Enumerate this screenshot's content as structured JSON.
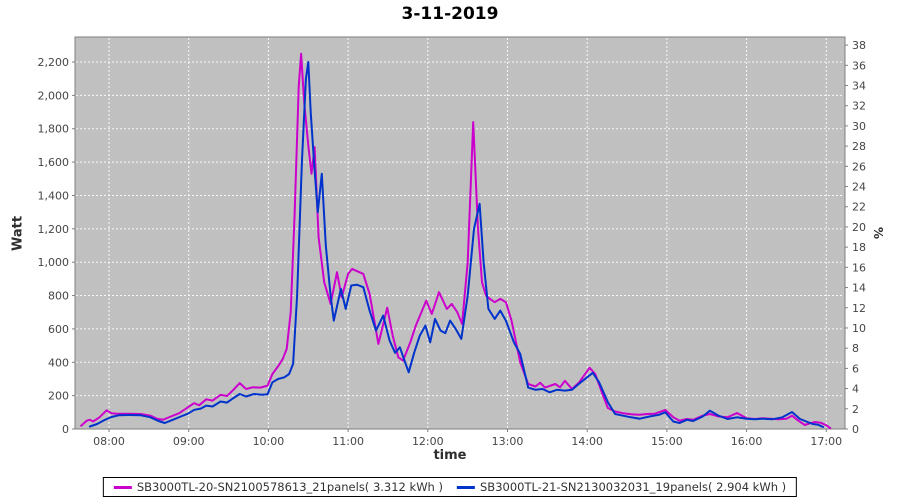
{
  "title": "3-11-2019",
  "chart_data": {
    "type": "line",
    "title": "3-11-2019",
    "plot_background": "#c0c0c0",
    "grid": true,
    "grid_color": "#ffffff",
    "legend_position": "bottom",
    "x_axis": {
      "label": "time",
      "min": 7.573,
      "max": 17.235,
      "ticks": [
        8,
        9,
        10,
        11,
        12,
        13,
        14,
        15,
        16,
        17
      ],
      "tick_labels": [
        "08:00",
        "09:00",
        "10:00",
        "11:00",
        "12:00",
        "13:00",
        "14:00",
        "15:00",
        "16:00",
        "17:00"
      ]
    },
    "y_axis_left": {
      "label": "Watt",
      "min": 0,
      "max": 2350,
      "ticks": [
        0,
        200,
        400,
        600,
        800,
        1000,
        1200,
        1400,
        1600,
        1800,
        2000,
        2200
      ]
    },
    "y_axis_right": {
      "label": "%",
      "min": 0,
      "max": 38.8,
      "ticks": [
        0,
        2,
        4,
        6,
        8,
        10,
        12,
        14,
        16,
        18,
        20,
        22,
        24,
        26,
        28,
        30,
        32,
        34,
        36,
        38
      ]
    },
    "series": [
      {
        "name": "SB3000TL-20-SN2100578613_21panels( 3.312 kWh )",
        "energy_kwh": 3.312,
        "color": "#cc00cc",
        "points": [
          [
            7.65,
            20
          ],
          [
            7.72,
            50
          ],
          [
            7.76,
            55
          ],
          [
            7.8,
            45
          ],
          [
            7.88,
            70
          ],
          [
            7.97,
            112
          ],
          [
            8.03,
            95
          ],
          [
            8.1,
            92
          ],
          [
            8.25,
            92
          ],
          [
            8.4,
            90
          ],
          [
            8.52,
            80
          ],
          [
            8.6,
            62
          ],
          [
            8.68,
            56
          ],
          [
            8.76,
            72
          ],
          [
            8.88,
            95
          ],
          [
            8.99,
            130
          ],
          [
            9.07,
            155
          ],
          [
            9.13,
            142
          ],
          [
            9.22,
            178
          ],
          [
            9.3,
            170
          ],
          [
            9.4,
            205
          ],
          [
            9.48,
            198
          ],
          [
            9.56,
            235
          ],
          [
            9.64,
            275
          ],
          [
            9.72,
            240
          ],
          [
            9.8,
            250
          ],
          [
            9.9,
            248
          ],
          [
            9.99,
            260
          ],
          [
            10.05,
            330
          ],
          [
            10.12,
            375
          ],
          [
            10.18,
            420
          ],
          [
            10.23,
            480
          ],
          [
            10.28,
            700
          ],
          [
            10.33,
            1300
          ],
          [
            10.38,
            2050
          ],
          [
            10.41,
            2250
          ],
          [
            10.45,
            1950
          ],
          [
            10.5,
            1700
          ],
          [
            10.54,
            1530
          ],
          [
            10.58,
            1690
          ],
          [
            10.63,
            1150
          ],
          [
            10.7,
            880
          ],
          [
            10.78,
            750
          ],
          [
            10.86,
            940
          ],
          [
            10.92,
            790
          ],
          [
            11.0,
            930
          ],
          [
            11.05,
            960
          ],
          [
            11.12,
            945
          ],
          [
            11.19,
            930
          ],
          [
            11.27,
            810
          ],
          [
            11.38,
            510
          ],
          [
            11.49,
            727
          ],
          [
            11.56,
            560
          ],
          [
            11.63,
            430
          ],
          [
            11.69,
            410
          ],
          [
            11.78,
            520
          ],
          [
            11.85,
            620
          ],
          [
            11.92,
            700
          ],
          [
            11.98,
            770
          ],
          [
            12.05,
            690
          ],
          [
            12.14,
            820
          ],
          [
            12.24,
            720
          ],
          [
            12.3,
            750
          ],
          [
            12.37,
            700
          ],
          [
            12.43,
            630
          ],
          [
            12.5,
            1000
          ],
          [
            12.57,
            1840
          ],
          [
            12.63,
            1200
          ],
          [
            12.68,
            880
          ],
          [
            12.73,
            800
          ],
          [
            12.78,
            780
          ],
          [
            12.84,
            760
          ],
          [
            12.91,
            780
          ],
          [
            12.98,
            760
          ],
          [
            13.05,
            650
          ],
          [
            13.16,
            400
          ],
          [
            13.26,
            270
          ],
          [
            13.35,
            255
          ],
          [
            13.41,
            277
          ],
          [
            13.47,
            248
          ],
          [
            13.6,
            270
          ],
          [
            13.66,
            250
          ],
          [
            13.72,
            289
          ],
          [
            13.81,
            240
          ],
          [
            13.9,
            280
          ],
          [
            14.03,
            367
          ],
          [
            14.1,
            330
          ],
          [
            14.2,
            200
          ],
          [
            14.26,
            126
          ],
          [
            14.35,
            105
          ],
          [
            14.45,
            95
          ],
          [
            14.55,
            88
          ],
          [
            14.66,
            85
          ],
          [
            14.75,
            90
          ],
          [
            14.85,
            92
          ],
          [
            14.98,
            114
          ],
          [
            15.08,
            70
          ],
          [
            15.16,
            50
          ],
          [
            15.25,
            60
          ],
          [
            15.33,
            55
          ],
          [
            15.45,
            80
          ],
          [
            15.54,
            90
          ],
          [
            15.65,
            75
          ],
          [
            15.76,
            70
          ],
          [
            15.88,
            96
          ],
          [
            16.0,
            65
          ],
          [
            16.1,
            60
          ],
          [
            16.2,
            65
          ],
          [
            16.3,
            62
          ],
          [
            16.4,
            58
          ],
          [
            16.5,
            62
          ],
          [
            16.57,
            80
          ],
          [
            16.65,
            50
          ],
          [
            16.73,
            24
          ],
          [
            16.8,
            35
          ],
          [
            16.86,
            42
          ],
          [
            16.93,
            38
          ],
          [
            17.0,
            22
          ],
          [
            17.05,
            5
          ]
        ]
      },
      {
        "name": "SB3000TL-21-SN2130032031_19panels( 2.904 kWh )",
        "energy_kwh": 2.904,
        "color": "#0033cc",
        "points": [
          [
            7.76,
            15
          ],
          [
            7.85,
            30
          ],
          [
            7.95,
            55
          ],
          [
            8.03,
            72
          ],
          [
            8.12,
            82
          ],
          [
            8.25,
            84
          ],
          [
            8.4,
            82
          ],
          [
            8.52,
            70
          ],
          [
            8.62,
            48
          ],
          [
            8.7,
            36
          ],
          [
            8.8,
            55
          ],
          [
            8.9,
            75
          ],
          [
            8.99,
            92
          ],
          [
            9.07,
            115
          ],
          [
            9.15,
            122
          ],
          [
            9.22,
            140
          ],
          [
            9.3,
            135
          ],
          [
            9.4,
            165
          ],
          [
            9.48,
            158
          ],
          [
            9.56,
            185
          ],
          [
            9.64,
            210
          ],
          [
            9.72,
            195
          ],
          [
            9.82,
            210
          ],
          [
            9.92,
            205
          ],
          [
            9.99,
            208
          ],
          [
            10.05,
            280
          ],
          [
            10.12,
            300
          ],
          [
            10.2,
            310
          ],
          [
            10.26,
            330
          ],
          [
            10.31,
            390
          ],
          [
            10.36,
            800
          ],
          [
            10.42,
            1600
          ],
          [
            10.47,
            2100
          ],
          [
            10.5,
            2200
          ],
          [
            10.53,
            1900
          ],
          [
            10.58,
            1550
          ],
          [
            10.62,
            1300
          ],
          [
            10.67,
            1530
          ],
          [
            10.72,
            1100
          ],
          [
            10.78,
            800
          ],
          [
            10.82,
            650
          ],
          [
            10.91,
            840
          ],
          [
            10.97,
            720
          ],
          [
            11.04,
            860
          ],
          [
            11.11,
            865
          ],
          [
            11.19,
            850
          ],
          [
            11.27,
            710
          ],
          [
            11.35,
            590
          ],
          [
            11.44,
            680
          ],
          [
            11.52,
            530
          ],
          [
            11.59,
            457
          ],
          [
            11.65,
            490
          ],
          [
            11.7,
            420
          ],
          [
            11.76,
            340
          ],
          [
            11.83,
            460
          ],
          [
            11.9,
            560
          ],
          [
            11.97,
            620
          ],
          [
            12.03,
            520
          ],
          [
            12.09,
            660
          ],
          [
            12.16,
            590
          ],
          [
            12.22,
            575
          ],
          [
            12.28,
            650
          ],
          [
            12.35,
            600
          ],
          [
            12.42,
            540
          ],
          [
            12.5,
            800
          ],
          [
            12.58,
            1200
          ],
          [
            12.65,
            1350
          ],
          [
            12.7,
            1000
          ],
          [
            12.76,
            720
          ],
          [
            12.84,
            660
          ],
          [
            12.91,
            710
          ],
          [
            12.98,
            650
          ],
          [
            13.08,
            520
          ],
          [
            13.16,
            450
          ],
          [
            13.26,
            248
          ],
          [
            13.35,
            235
          ],
          [
            13.44,
            240
          ],
          [
            13.53,
            220
          ],
          [
            13.62,
            235
          ],
          [
            13.72,
            230
          ],
          [
            13.81,
            235
          ],
          [
            13.92,
            280
          ],
          [
            14.07,
            337
          ],
          [
            14.15,
            280
          ],
          [
            14.26,
            160
          ],
          [
            14.35,
            90
          ],
          [
            14.45,
            80
          ],
          [
            14.55,
            70
          ],
          [
            14.66,
            62
          ],
          [
            14.78,
            75
          ],
          [
            14.9,
            85
          ],
          [
            14.98,
            100
          ],
          [
            15.08,
            45
          ],
          [
            15.16,
            36
          ],
          [
            15.25,
            55
          ],
          [
            15.33,
            48
          ],
          [
            15.45,
            75
          ],
          [
            15.54,
            110
          ],
          [
            15.65,
            80
          ],
          [
            15.76,
            60
          ],
          [
            15.88,
            70
          ],
          [
            16.0,
            62
          ],
          [
            16.1,
            58
          ],
          [
            16.2,
            62
          ],
          [
            16.32,
            58
          ],
          [
            16.45,
            70
          ],
          [
            16.57,
            102
          ],
          [
            16.67,
            60
          ],
          [
            16.75,
            45
          ],
          [
            16.83,
            30
          ],
          [
            16.9,
            25
          ],
          [
            16.96,
            12
          ]
        ]
      }
    ]
  }
}
